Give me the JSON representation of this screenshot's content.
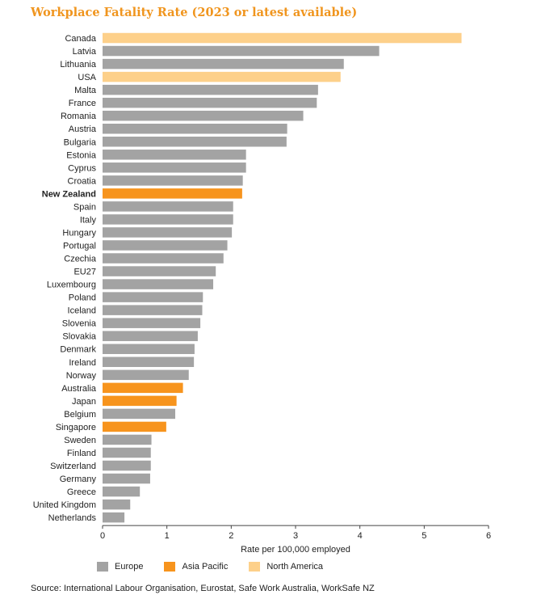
{
  "chart_data": {
    "type": "bar",
    "orientation": "horizontal",
    "title": "Workplace Fatality Rate (2023 or latest available)",
    "xlabel": "Rate per 100,000 employed",
    "ylabel": "",
    "xlim": [
      0,
      6
    ],
    "xticks": [
      0,
      1,
      2,
      3,
      4,
      5,
      6
    ],
    "grid": false,
    "legend_position": "bottom-left",
    "categories": [
      "Canada",
      "Latvia",
      "Lithuania",
      "USA",
      "Malta",
      "France",
      "Romania",
      "Austria",
      "Bulgaria",
      "Estonia",
      "Cyprus",
      "Croatia",
      "New Zealand",
      "Spain",
      "Italy",
      "Hungary",
      "Portugal",
      "Czechia",
      "EU27",
      "Luxembourg",
      "Poland",
      "Iceland",
      "Slovenia",
      "Slovakia",
      "Denmark",
      "Ireland",
      "Norway",
      "Australia",
      "Japan",
      "Belgium",
      "Singapore",
      "Sweden",
      "Finland",
      "Switzerland",
      "Germany",
      "Greece",
      "United Kingdom",
      "Netherlands"
    ],
    "values": [
      5.58,
      4.3,
      3.75,
      3.7,
      3.35,
      3.33,
      3.12,
      2.87,
      2.86,
      2.23,
      2.23,
      2.18,
      2.17,
      2.03,
      2.03,
      2.01,
      1.94,
      1.88,
      1.76,
      1.72,
      1.56,
      1.55,
      1.52,
      1.48,
      1.43,
      1.42,
      1.34,
      1.25,
      1.15,
      1.13,
      0.99,
      0.76,
      0.75,
      0.75,
      0.74,
      0.58,
      0.43,
      0.34
    ],
    "regions": [
      "North America",
      "Europe",
      "Europe",
      "North America",
      "Europe",
      "Europe",
      "Europe",
      "Europe",
      "Europe",
      "Europe",
      "Europe",
      "Europe",
      "Asia Pacific",
      "Europe",
      "Europe",
      "Europe",
      "Europe",
      "Europe",
      "Europe",
      "Europe",
      "Europe",
      "Europe",
      "Europe",
      "Europe",
      "Europe",
      "Europe",
      "Europe",
      "Asia Pacific",
      "Asia Pacific",
      "Europe",
      "Asia Pacific",
      "Europe",
      "Europe",
      "Europe",
      "Europe",
      "Europe",
      "Europe",
      "Europe"
    ],
    "highlight_category": "New Zealand",
    "legend": [
      {
        "name": "Europe",
        "color": "#a3a3a3"
      },
      {
        "name": "Asia Pacific",
        "color": "#f7941d"
      },
      {
        "name": "North America",
        "color": "#fdd08a"
      }
    ]
  },
  "source": "Source: International Labour Organisation, Eurostat, Safe Work Australia, WorkSafe NZ"
}
